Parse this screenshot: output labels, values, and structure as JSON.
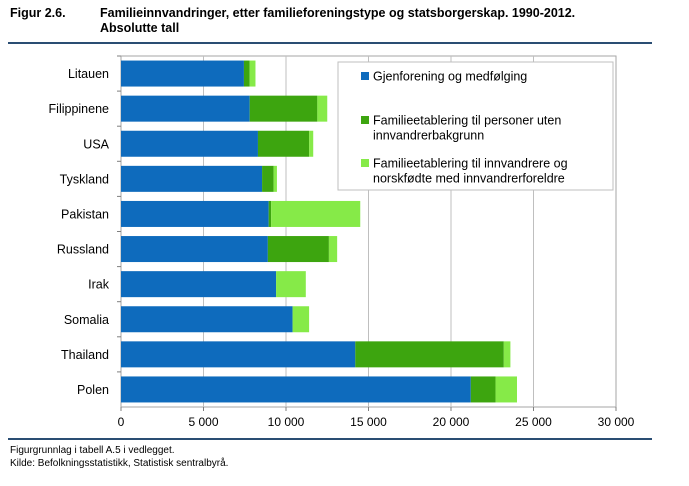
{
  "figure": {
    "number": "Figur 2.6.",
    "title_line1": "Familieinnvandringer, etter familieforeningstype og statsborgerskap. 1990-2012.",
    "title_line2": "Absolutte tall"
  },
  "footer": {
    "line1": "Figurgrunnlag i tabell A.5 i vedlegget.",
    "line2": "Kilde: Befolkningsstatistikk, Statistisk sentralbyrå."
  },
  "chart_data": {
    "type": "bar",
    "orientation": "horizontal",
    "stacked": true,
    "title": "Familieinnvandringer, etter familieforeningstype og statsborgerskap. 1990-2012. Absolutte tall",
    "xlabel": "",
    "ylabel": "",
    "xlim": [
      0,
      30000
    ],
    "x_ticks": [
      0,
      5000,
      10000,
      15000,
      20000,
      25000,
      30000
    ],
    "x_tick_labels": [
      "0",
      "5 000",
      "10 000",
      "15 000",
      "20 000",
      "25 000",
      "30 000"
    ],
    "grid": true,
    "legend_position": "top-right",
    "categories": [
      "Litauen",
      "Filippinene",
      "USA",
      "Tyskland",
      "Pakistan",
      "Russland",
      "Irak",
      "Somalia",
      "Thailand",
      "Polen"
    ],
    "series": [
      {
        "name": "Gjenforening og medfølging",
        "color": "#0e6bbd",
        "values": [
          7450,
          7800,
          8300,
          8550,
          8950,
          8900,
          9400,
          10400,
          14200,
          21200
        ]
      },
      {
        "name": "Familieetablering til personer uten innvandrerbakgrunn",
        "color": "#3da50f",
        "values": [
          350,
          4100,
          3100,
          700,
          150,
          3700,
          0,
          0,
          9000,
          1500
        ]
      },
      {
        "name": "Familieetablering til innvandrere og norskfødte med innvandrerforeldre",
        "color": "#86ea48",
        "values": [
          350,
          600,
          250,
          200,
          5400,
          500,
          1800,
          1000,
          400,
          1300
        ]
      }
    ],
    "legend_labels": [
      [
        "Gjenforening og medfølging"
      ],
      [
        "Familieetablering til personer uten",
        "innvandrerbakgrunn"
      ],
      [
        "Familieetablering til innvandrere og",
        "norskfødte med innvandrerforeldre"
      ]
    ]
  }
}
